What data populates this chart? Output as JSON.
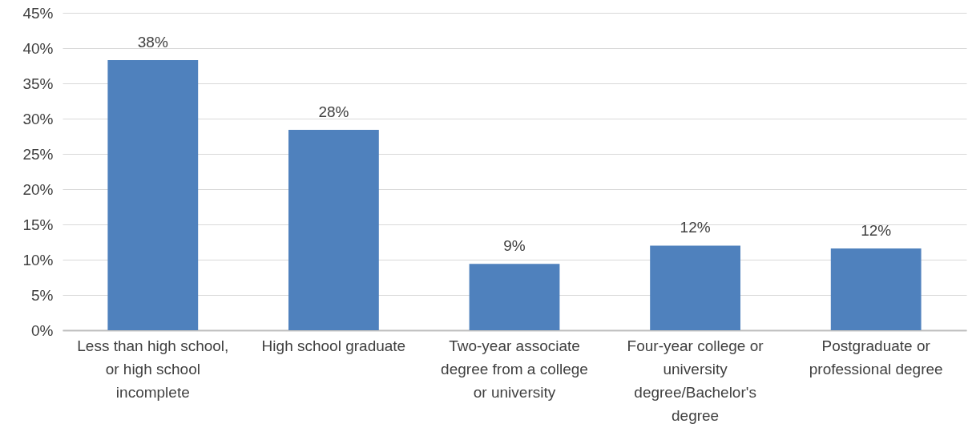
{
  "chart_data": {
    "type": "bar",
    "categories": [
      "Less than high school, or high school incomplete",
      "High school graduate",
      "Two-year associate degree from a college or university",
      "Four-year college or university degree/Bachelor's degree",
      "Postgraduate or professional degree"
    ],
    "values": [
      38.3,
      28.4,
      9.4,
      12.0,
      11.6
    ],
    "value_labels": [
      "38%",
      "28%",
      "9%",
      "12%",
      "12%"
    ],
    "color": "#4f81bd",
    "ylim": [
      0,
      45
    ],
    "yticks": [
      {
        "value": 0,
        "label": "0%"
      },
      {
        "value": 5,
        "label": "5%"
      },
      {
        "value": 10,
        "label": "10%"
      },
      {
        "value": 15,
        "label": "15%"
      },
      {
        "value": 20,
        "label": "20%"
      },
      {
        "value": 25,
        "label": "25%"
      },
      {
        "value": 30,
        "label": "30%"
      },
      {
        "value": 35,
        "label": "35%"
      },
      {
        "value": 40,
        "label": "40%"
      },
      {
        "value": 45,
        "label": "45%"
      }
    ],
    "grid": "y"
  }
}
